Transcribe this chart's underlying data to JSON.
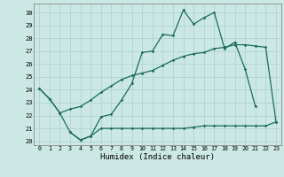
{
  "xlabel": "Humidex (Indice chaleur)",
  "bg_color": "#cce8e4",
  "grid_color": "#aad0cc",
  "line_color": "#1a6b60",
  "xlim": [
    -0.5,
    23.5
  ],
  "ylim": [
    19.7,
    30.7
  ],
  "yticks": [
    20,
    21,
    22,
    23,
    24,
    25,
    26,
    27,
    28,
    29,
    30
  ],
  "xticks": [
    0,
    1,
    2,
    3,
    4,
    5,
    6,
    7,
    8,
    9,
    10,
    11,
    12,
    13,
    14,
    15,
    16,
    17,
    18,
    19,
    20,
    21,
    22,
    23
  ],
  "line1_y": [
    24.1,
    23.3,
    22.2,
    20.7,
    20.1,
    20.4,
    21.9,
    22.1,
    23.2,
    24.5,
    26.9,
    27.0,
    28.3,
    28.2,
    30.2,
    29.1,
    29.6,
    30.0,
    27.2,
    27.7,
    25.6,
    22.7,
    null,
    null
  ],
  "line2_y": [
    24.1,
    23.3,
    22.2,
    22.5,
    22.7,
    23.2,
    23.8,
    24.3,
    24.8,
    25.1,
    25.3,
    25.5,
    25.9,
    26.3,
    26.6,
    26.8,
    26.9,
    27.2,
    27.3,
    27.5,
    27.5,
    27.4,
    27.3,
    21.5
  ],
  "line3_y": [
    null,
    null,
    null,
    20.7,
    20.1,
    20.4,
    21.0,
    21.0,
    21.0,
    21.0,
    21.0,
    21.0,
    21.0,
    21.0,
    21.0,
    21.1,
    21.2,
    21.2,
    21.2,
    21.2,
    21.2,
    21.2,
    21.2,
    21.5
  ]
}
